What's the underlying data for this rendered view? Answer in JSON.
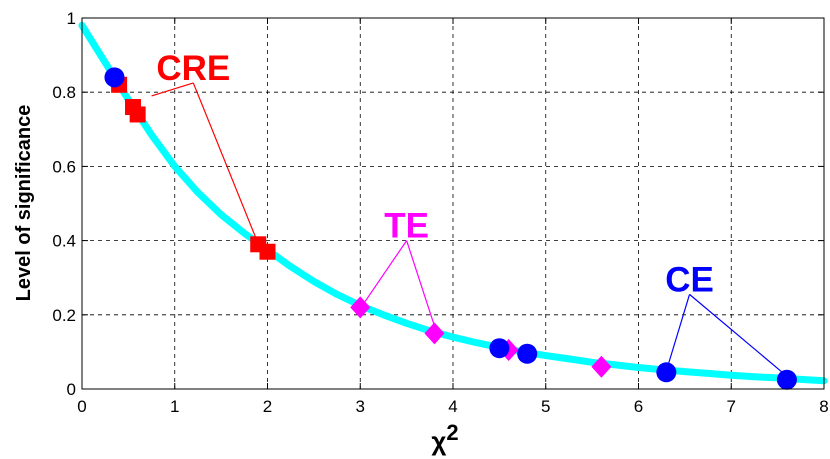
{
  "chart_data": {
    "type": "scatter",
    "title": "",
    "xlabel": "χ",
    "xlabel_superscript": "2",
    "ylabel": "Level of significance",
    "xlim": [
      0,
      8
    ],
    "ylim": [
      0,
      1
    ],
    "xticks": [
      0,
      1,
      2,
      3,
      4,
      5,
      6,
      7,
      8
    ],
    "yticks": [
      0,
      0.2,
      0.4,
      0.6,
      0.8,
      1
    ],
    "ytick_labels": [
      "0",
      "0.2",
      "0.4",
      "0.6",
      "0.8",
      "1"
    ],
    "grid": true,
    "curve": {
      "color": "#00ffff",
      "x": [
        0,
        0.25,
        0.5,
        0.75,
        1,
        1.25,
        1.5,
        1.75,
        2,
        2.25,
        2.5,
        2.75,
        3,
        3.25,
        3.5,
        3.75,
        4,
        4.25,
        4.5,
        4.75,
        5,
        5.25,
        5.5,
        5.75,
        6,
        6.25,
        6.5,
        6.75,
        7,
        7.25,
        7.5,
        7.75,
        8
      ],
      "y": [
        0.98,
        0.88,
        0.78,
        0.685,
        0.6,
        0.53,
        0.47,
        0.42,
        0.375,
        0.33,
        0.29,
        0.255,
        0.225,
        0.2,
        0.177,
        0.157,
        0.14,
        0.125,
        0.112,
        0.1,
        0.09,
        0.081,
        0.072,
        0.065,
        0.058,
        0.052,
        0.047,
        0.042,
        0.037,
        0.033,
        0.03,
        0.026,
        0.022
      ]
    },
    "series": [
      {
        "name": "CRE",
        "marker": "square",
        "color": "#ff0000",
        "x": [
          0.4,
          0.55,
          0.6,
          1.9,
          2.0
        ],
        "y": [
          0.82,
          0.76,
          0.74,
          0.39,
          0.37
        ]
      },
      {
        "name": "TE",
        "marker": "diamond",
        "color": "#ff00ff",
        "x": [
          3.0,
          3.8,
          4.6,
          5.6
        ],
        "y": [
          0.22,
          0.15,
          0.105,
          0.06
        ]
      },
      {
        "name": "CE",
        "marker": "circle",
        "color": "#0000ff",
        "x": [
          0.35,
          4.5,
          4.8,
          6.3,
          7.6
        ],
        "y": [
          0.84,
          0.11,
          0.095,
          0.045,
          0.025
        ]
      }
    ],
    "annotations": [
      {
        "text": "CRE",
        "color": "#ff0000",
        "x": 1.2,
        "y": 0.825,
        "targets": [
          [
            0.75,
            0.79
          ],
          [
            1.87,
            0.41
          ]
        ]
      },
      {
        "text": "TE",
        "color": "#ff00ff",
        "x": 3.5,
        "y": 0.4,
        "targets": [
          [
            3.05,
            0.235
          ],
          [
            3.8,
            0.17
          ]
        ]
      },
      {
        "text": "CE",
        "color": "#0000ff",
        "x": 6.55,
        "y": 0.255,
        "targets": [
          [
            6.32,
            0.065
          ],
          [
            7.55,
            0.045
          ]
        ]
      }
    ]
  }
}
